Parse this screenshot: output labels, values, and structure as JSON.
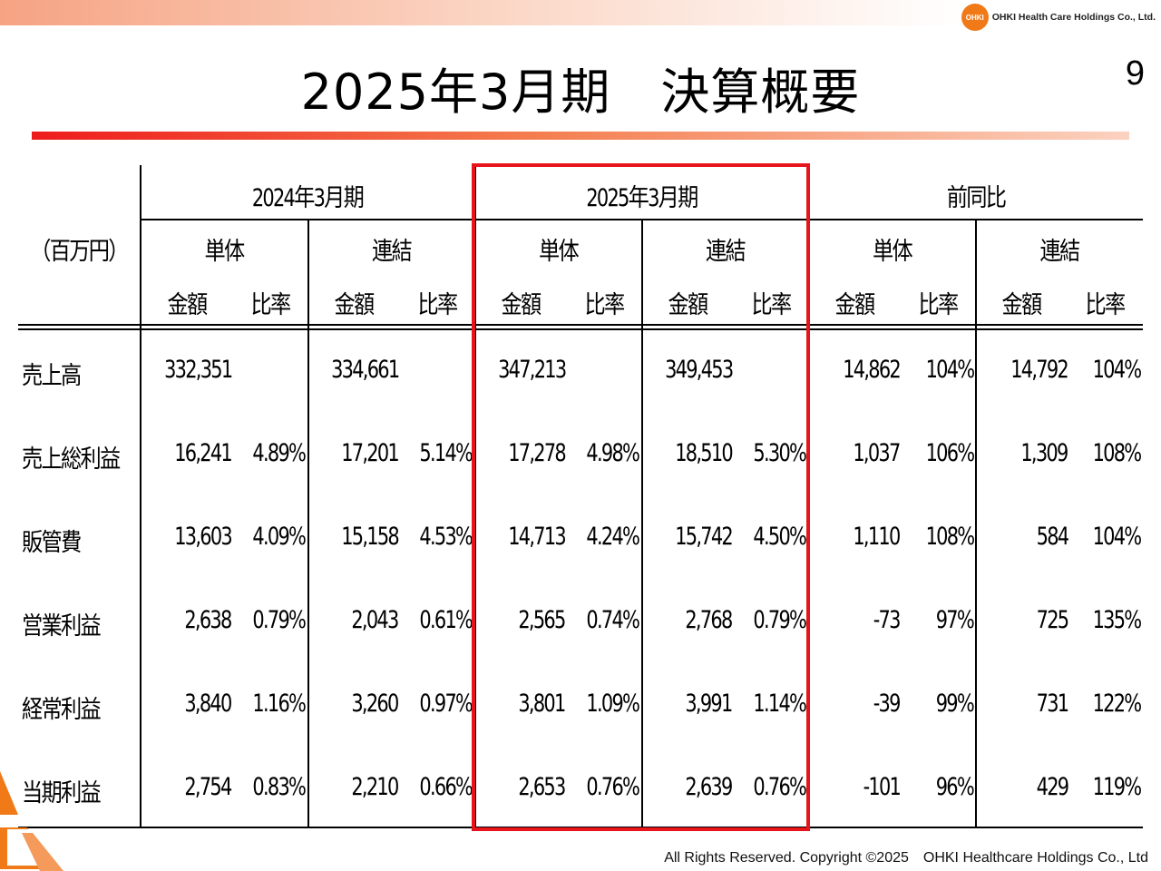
{
  "header": {
    "logo_mark": "OHKI",
    "company": "OHKI Health Care Holdings Co., Ltd."
  },
  "title": "2025年3月期　決算概要",
  "page_number": "9",
  "table": {
    "unit": "（百万円）",
    "periods": [
      "2024年3月期",
      "2025年3月期",
      "前同比"
    ],
    "scopes": [
      "単体",
      "連結",
      "単体",
      "連結",
      "単体",
      "連結"
    ],
    "subcols": [
      "金額",
      "比率",
      "金額",
      "比率",
      "金額",
      "比率",
      "金額",
      "比率",
      "金額",
      "比率",
      "金額",
      "比率"
    ],
    "rows": [
      {
        "label": "売上高",
        "values": [
          "332,351",
          "",
          "334,661",
          "",
          "347,213",
          "",
          "349,453",
          "",
          "14,862",
          "104%",
          "14,792",
          "104%"
        ]
      },
      {
        "label": "売上総利益",
        "values": [
          "16,241",
          "4.89%",
          "17,201",
          "5.14%",
          "17,278",
          "4.98%",
          "18,510",
          "5.30%",
          "1,037",
          "106%",
          "1,309",
          "108%"
        ]
      },
      {
        "label": "販管費",
        "values": [
          "13,603",
          "4.09%",
          "15,158",
          "4.53%",
          "14,713",
          "4.24%",
          "15,742",
          "4.50%",
          "1,110",
          "108%",
          "584",
          "104%"
        ]
      },
      {
        "label": "営業利益",
        "values": [
          "2,638",
          "0.79%",
          "2,043",
          "0.61%",
          "2,565",
          "0.74%",
          "2,768",
          "0.79%",
          "-73",
          "97%",
          "725",
          "135%"
        ]
      },
      {
        "label": "経常利益",
        "values": [
          "3,840",
          "1.16%",
          "3,260",
          "0.97%",
          "3,801",
          "1.09%",
          "3,991",
          "1.14%",
          "-39",
          "99%",
          "731",
          "122%"
        ]
      },
      {
        "label": "当期利益",
        "values": [
          "2,754",
          "0.83%",
          "2,210",
          "0.66%",
          "2,653",
          "0.76%",
          "2,639",
          "0.76%",
          "-101",
          "96%",
          "429",
          "119%"
        ]
      }
    ]
  },
  "footer": "All Rights Reserved. Copyright ©2025　OHKI Healthcare Holdings Co., Ltd",
  "colors": {
    "accent_red": "#e8141c",
    "brand_orange": "#f07a18"
  }
}
